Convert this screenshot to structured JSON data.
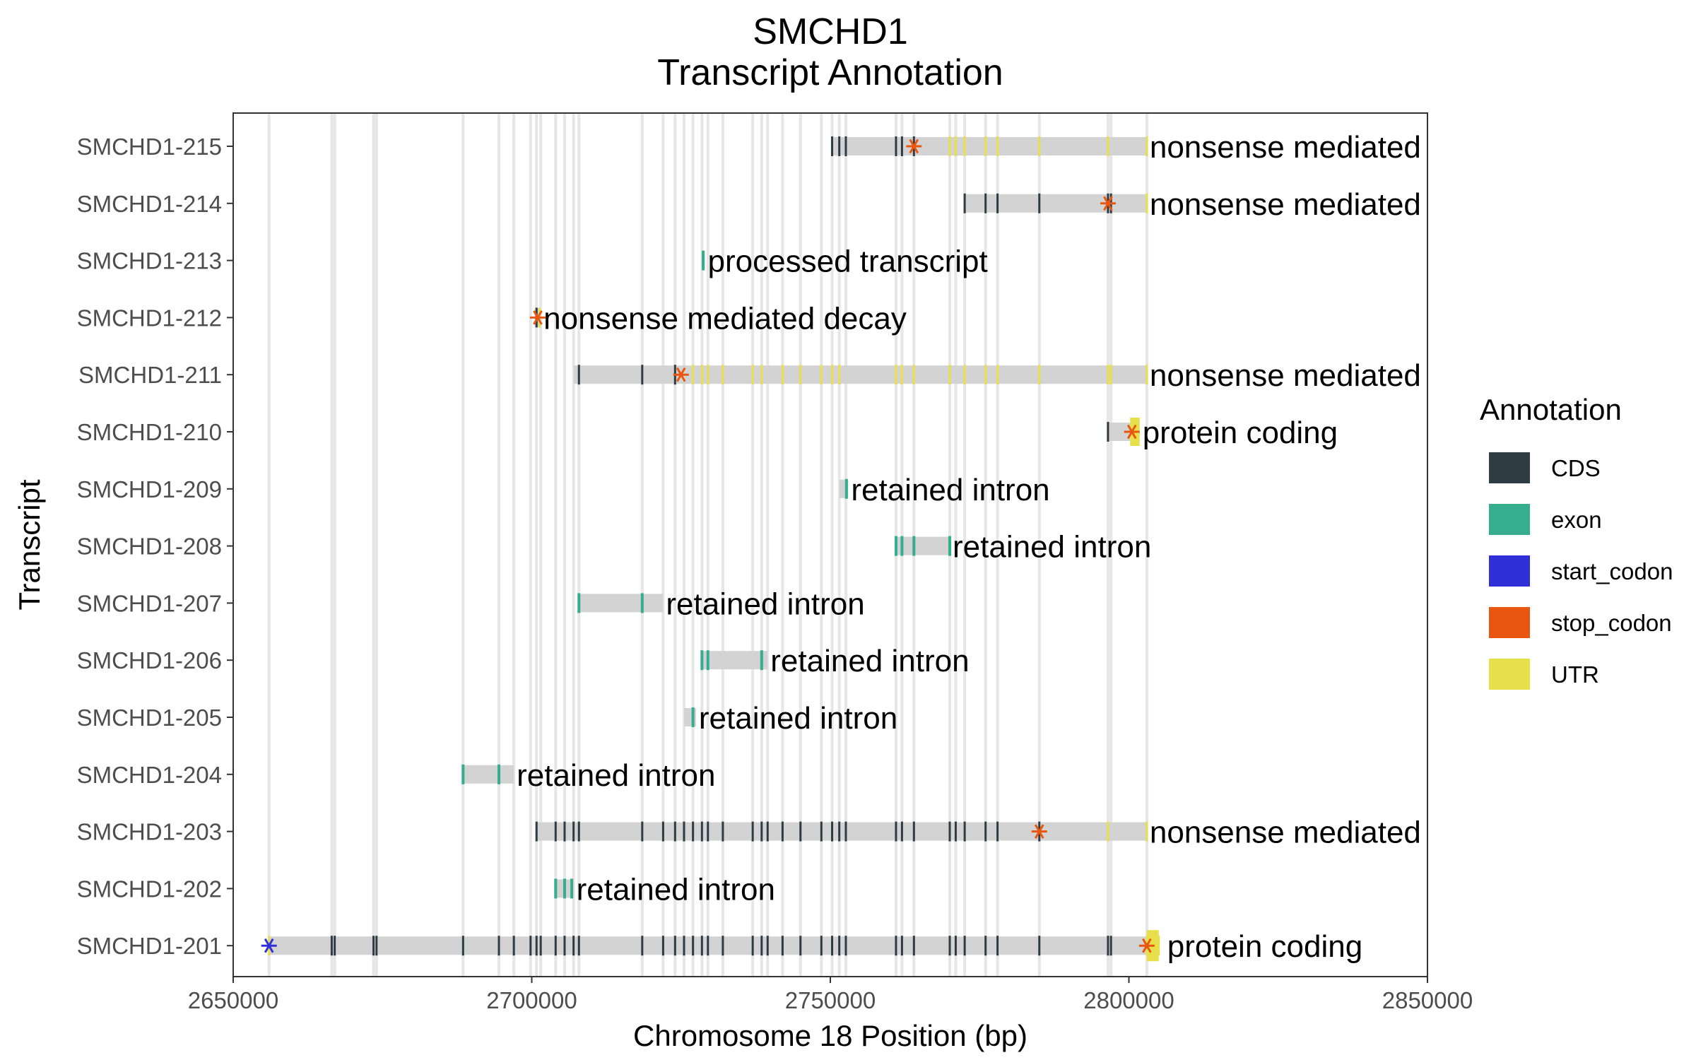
{
  "chart_data": {
    "type": "gene-structure",
    "title_line1": "SMCHD1",
    "title_line2": "Transcript Annotation",
    "xlabel": "Chromosome 18 Position (bp)",
    "ylabel": "Transcript",
    "xlim": [
      2650000,
      2850000
    ],
    "x_ticks": [
      2650000,
      2700000,
      2750000,
      2800000,
      2850000
    ],
    "x_tick_labels": [
      "2650000",
      "2700000",
      "2750000",
      "2800000",
      "2850000"
    ],
    "grid": "vertical exon boundary lines",
    "colors": {
      "CDS": "#2f3c44",
      "exon": "#36ad8f",
      "start_codon": "#3030d8",
      "stop_codon": "#e8560f",
      "UTR": "#e8e04a",
      "intron": "#d3d3d3"
    },
    "legend": {
      "title": "Annotation",
      "position": "right",
      "items": [
        {
          "key": "CDS",
          "label": "CDS"
        },
        {
          "key": "exon",
          "label": "exon"
        },
        {
          "key": "start_codon",
          "label": "start_codon"
        },
        {
          "key": "stop_codon",
          "label": "stop_codon"
        },
        {
          "key": "UTR",
          "label": "UTR"
        }
      ]
    },
    "exon_boundaries": [
      2656000,
      2666500,
      2667000,
      2673500,
      2674000,
      2688500,
      2694500,
      2697000,
      2699800,
      2700800,
      2701500,
      2704000,
      2705500,
      2707000,
      2707900,
      2718500,
      2722000,
      2724000,
      2725500,
      2727000,
      2728500,
      2729500,
      2732000,
      2737000,
      2738500,
      2739500,
      2742000,
      2745000,
      2748500,
      2750300,
      2751500,
      2752600,
      2761000,
      2762000,
      2764000,
      2770000,
      2771000,
      2772500,
      2776000,
      2778000,
      2785000,
      2796500,
      2797000,
      2803000
    ],
    "transcripts": [
      {
        "id": "SMCHD1-215",
        "biotype": "nonsense mediated decay",
        "start": 2750300,
        "end": 2803000,
        "stop_codon": 2764000,
        "start_codon": null,
        "cds": [
          2750300,
          2751500,
          2752600,
          2761000,
          2762000,
          2764000
        ],
        "exon": [],
        "utr": [
          2770000,
          2771000,
          2772500,
          2776000,
          2778000,
          2785000,
          2796500,
          2803000
        ]
      },
      {
        "id": "SMCHD1-214",
        "biotype": "nonsense mediated decay",
        "start": 2772500,
        "end": 2803000,
        "stop_codon": 2796500,
        "start_codon": null,
        "cds": [
          2772500,
          2776000,
          2778000,
          2785000,
          2796500,
          2797000
        ],
        "exon": [],
        "utr": [
          2803000
        ]
      },
      {
        "id": "SMCHD1-213",
        "biotype": "processed transcript",
        "start": 2728500,
        "end": 2729000,
        "stop_codon": null,
        "start_codon": null,
        "cds": [],
        "exon": [
          2728700
        ],
        "utr": []
      },
      {
        "id": "SMCHD1-212",
        "biotype": "nonsense mediated decay",
        "start": 2700500,
        "end": 2701500,
        "stop_codon": 2701000,
        "start_codon": null,
        "cds": [
          2700800
        ],
        "exon": [],
        "utr": [
          2701300
        ]
      },
      {
        "id": "SMCHD1-211",
        "biotype": "nonsense mediated decay",
        "start": 2707000,
        "end": 2803000,
        "stop_codon": 2725000,
        "start_codon": null,
        "cds": [
          2707900,
          2718500,
          2724000
        ],
        "exon": [],
        "utr": [
          2727000,
          2728500,
          2729500,
          2732000,
          2737000,
          2738500,
          2742000,
          2745000,
          2748500,
          2750300,
          2751500,
          2761000,
          2762000,
          2764000,
          2770000,
          2772500,
          2776000,
          2778000,
          2785000,
          2796500,
          2797000,
          2803000
        ]
      },
      {
        "id": "SMCHD1-210",
        "biotype": "protein coding",
        "start": 2796500,
        "end": 2801800,
        "stop_codon": 2800500,
        "start_codon": null,
        "cds": [
          2796500
        ],
        "exon": [],
        "utr": [
          2801000
        ]
      },
      {
        "id": "SMCHD1-209",
        "biotype": "retained intron",
        "start": 2751500,
        "end": 2753000,
        "stop_codon": null,
        "start_codon": null,
        "cds": [],
        "exon": [
          2752700
        ],
        "utr": []
      },
      {
        "id": "SMCHD1-208",
        "biotype": "retained intron",
        "start": 2761000,
        "end": 2770000,
        "stop_codon": null,
        "start_codon": null,
        "cds": [],
        "exon": [
          2761000,
          2762000,
          2764000,
          2770000
        ],
        "utr": []
      },
      {
        "id": "SMCHD1-207",
        "biotype": "retained intron",
        "start": 2707900,
        "end": 2722000,
        "stop_codon": null,
        "start_codon": null,
        "cds": [],
        "exon": [
          2707900,
          2718500
        ],
        "utr": []
      },
      {
        "id": "SMCHD1-206",
        "biotype": "retained intron",
        "start": 2728500,
        "end": 2739500,
        "stop_codon": null,
        "start_codon": null,
        "cds": [],
        "exon": [
          2728500,
          2729500,
          2738500
        ],
        "utr": []
      },
      {
        "id": "SMCHD1-205",
        "biotype": "retained intron",
        "start": 2725500,
        "end": 2727500,
        "stop_codon": null,
        "start_codon": null,
        "cds": [],
        "exon": [
          2727000
        ],
        "utr": []
      },
      {
        "id": "SMCHD1-204",
        "biotype": "retained intron",
        "start": 2688500,
        "end": 2697000,
        "stop_codon": null,
        "start_codon": null,
        "cds": [],
        "exon": [
          2688500,
          2694500
        ],
        "utr": []
      },
      {
        "id": "SMCHD1-203",
        "biotype": "nonsense mediated decay",
        "start": 2700800,
        "end": 2803000,
        "stop_codon": 2785000,
        "start_codon": null,
        "cds": [
          2700800,
          2704000,
          2705500,
          2707000,
          2707900,
          2718500,
          2722000,
          2724000,
          2725500,
          2727000,
          2728500,
          2729500,
          2732000,
          2737000,
          2738500,
          2739500,
          2742000,
          2745000,
          2748500,
          2750300,
          2751500,
          2752600,
          2761000,
          2762000,
          2764000,
          2770000,
          2771000,
          2772500,
          2776000,
          2778000,
          2785000
        ],
        "exon": [],
        "utr": [
          2796500,
          2803000
        ]
      },
      {
        "id": "SMCHD1-202",
        "biotype": "retained intron",
        "start": 2704000,
        "end": 2707000,
        "stop_codon": null,
        "start_codon": null,
        "cds": [],
        "exon": [
          2704000,
          2705500,
          2706700
        ],
        "utr": []
      },
      {
        "id": "SMCHD1-201",
        "biotype": "protein coding",
        "start": 2656000,
        "end": 2805000,
        "stop_codon": 2803000,
        "start_codon": 2656000,
        "cds": [
          2666500,
          2667000,
          2673500,
          2674000,
          2688500,
          2694500,
          2697000,
          2699800,
          2700800,
          2701500,
          2704000,
          2705500,
          2707000,
          2707900,
          2718500,
          2722000,
          2724000,
          2725500,
          2727000,
          2728500,
          2729500,
          2732000,
          2737000,
          2738500,
          2739500,
          2742000,
          2745000,
          2748500,
          2750300,
          2751500,
          2752600,
          2761000,
          2762000,
          2764000,
          2770000,
          2771000,
          2772500,
          2776000,
          2778000,
          2785000,
          2796500,
          2797000
        ],
        "exon": [],
        "utr": [
          2656000,
          2803000,
          2805000
        ]
      }
    ]
  }
}
